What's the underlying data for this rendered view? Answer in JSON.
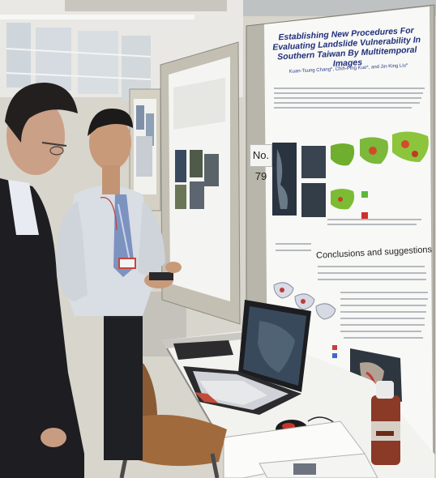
{
  "poster": {
    "title": "Establishing New Procedures For Evaluating Landslide Vulnerability In Southern Taiwan By Multitemporal Images",
    "authors": "Kuan-Tsung Chang*, Chih-Ping Kuo*, and Jin-King Liu*",
    "section_heading": "Conclusions and suggestions",
    "board_number": "No. 79"
  }
}
